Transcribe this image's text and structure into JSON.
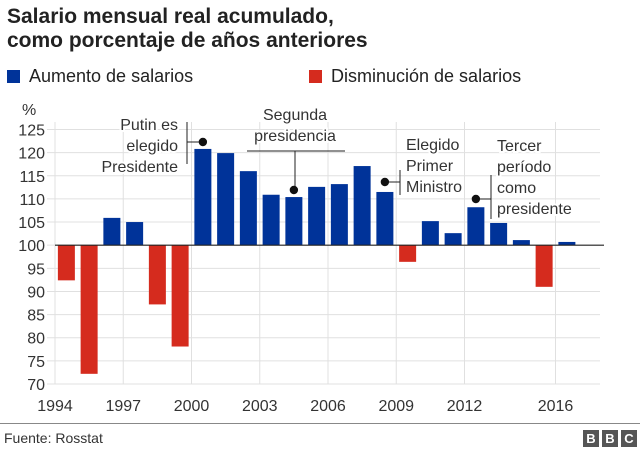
{
  "chart_data": {
    "type": "bar",
    "title": "Salario mensual real acumulado,\ncomo porcentaje de años anteriores",
    "title_lines": [
      "Salario mensual real acumulado,",
      "como porcentaje de años anteriores"
    ],
    "ylabel": "%",
    "xlabel": "",
    "ylim": [
      70,
      125
    ],
    "baseline": 100,
    "yticks": [
      70,
      75,
      80,
      85,
      90,
      95,
      100,
      105,
      110,
      115,
      120,
      125
    ],
    "xticks": [
      1994,
      1997,
      2000,
      2003,
      2006,
      2009,
      2012,
      2016
    ],
    "grid": true,
    "categories": [
      1994,
      1995,
      1996,
      1997,
      1998,
      1999,
      2000,
      2001,
      2002,
      2003,
      2004,
      2005,
      2006,
      2007,
      2008,
      2009,
      2010,
      2011,
      2012,
      2013,
      2014,
      2015,
      2016
    ],
    "values": [
      92.4,
      72.2,
      105.9,
      105.0,
      87.2,
      78.1,
      120.8,
      119.9,
      116.0,
      110.9,
      110.4,
      112.6,
      113.2,
      117.1,
      111.5,
      96.4,
      105.2,
      102.6,
      108.2,
      104.8,
      101.1,
      91.0,
      100.7
    ],
    "legend": {
      "placement": "top",
      "increase": {
        "label": "Aumento de salarios",
        "color": "#003399"
      },
      "decrease": {
        "label": "Disminución de salarios",
        "color": "#d52b1e"
      }
    },
    "annotations": [
      {
        "year": 2000,
        "lines": [
          "Putin es",
          "elegido",
          "Presidente"
        ]
      },
      {
        "year": 2004,
        "lines": [
          "Segunda",
          "presidencia"
        ]
      },
      {
        "year": 2008,
        "lines": [
          "Elegido",
          "Primer",
          "Ministro"
        ]
      },
      {
        "year": 2012,
        "lines": [
          "Tercer",
          "período",
          "como",
          "presidente"
        ]
      }
    ]
  },
  "footer": {
    "source": "Fuente: Rosstat",
    "logo": [
      "B",
      "B",
      "C"
    ]
  }
}
